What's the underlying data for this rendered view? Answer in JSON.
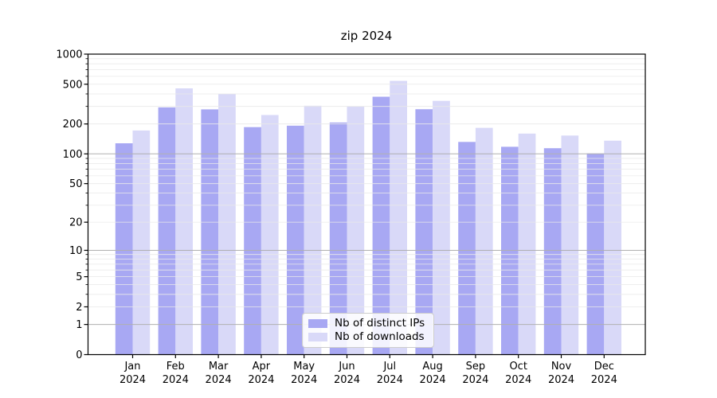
{
  "title": "zip 2024",
  "legend": {
    "items": [
      {
        "label": "Nb of distinct IPs"
      },
      {
        "label": "Nb of downloads"
      }
    ]
  },
  "colors": {
    "bar_distinct_ips": "#a8a8f3",
    "bar_downloads": "#d9d9f8",
    "grid_major": "#b0b0b0",
    "grid_minor": "#e9e9e9",
    "axis": "#000000",
    "legend_border": "#cccccc"
  },
  "chart_data": {
    "type": "bar",
    "title": "zip 2024",
    "categories": [
      "Jan 2024",
      "Feb 2024",
      "Mar 2024",
      "Apr 2024",
      "May 2024",
      "Jun 2024",
      "Jul 2024",
      "Aug 2024",
      "Sep 2024",
      "Oct 2024",
      "Nov 2024",
      "Dec 2024"
    ],
    "x_tick_month": [
      "Jan",
      "Feb",
      "Mar",
      "Apr",
      "May",
      "Jun",
      "Jul",
      "Aug",
      "Sep",
      "Oct",
      "Nov",
      "Dec"
    ],
    "x_tick_year": "2024",
    "series": [
      {
        "name": "Nb of distinct IPs",
        "color": "#a8a8f3",
        "values": [
          128,
          293,
          280,
          186,
          192,
          207,
          375,
          281,
          132,
          118,
          114,
          101
        ]
      },
      {
        "name": "Nb of downloads",
        "color": "#d9d9f8",
        "values": [
          172,
          455,
          400,
          246,
          305,
          300,
          540,
          341,
          183,
          160,
          153,
          136
        ]
      }
    ],
    "xlabel": "",
    "ylabel": "",
    "yscale": "log1p",
    "ylim": [
      0,
      1000
    ],
    "y_ticks_labeled": [
      0,
      1,
      2,
      5,
      10,
      20,
      50,
      100,
      200,
      500,
      1000
    ],
    "grid_major_values": [
      1,
      10,
      100,
      1000
    ],
    "grid_minor_per_decade": [
      2,
      3,
      4,
      5,
      6,
      7,
      8,
      9
    ],
    "grid": "on",
    "legend_position": "lower center"
  }
}
